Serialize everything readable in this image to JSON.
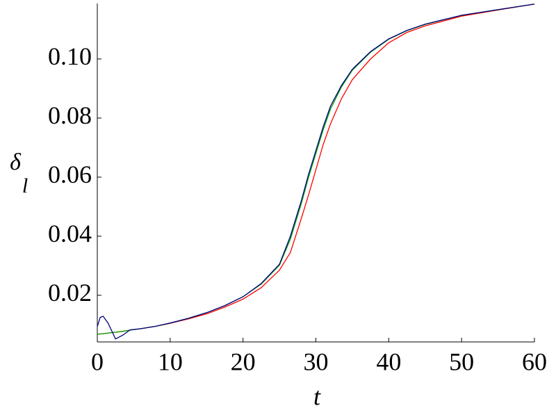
{
  "chart_data": {
    "type": "line",
    "xlabel": "t",
    "ylabel": "δ",
    "ylabel_subscript": "l",
    "x": [
      0,
      0.4,
      0.8,
      1.5,
      2.5,
      3.5,
      4.5,
      6,
      8,
      10,
      12.5,
      15,
      17.5,
      20,
      22.5,
      25,
      26.5,
      28,
      29,
      30,
      31,
      32,
      33.5,
      35,
      37.5,
      40,
      42.5,
      45,
      50,
      55,
      60
    ],
    "series": [
      {
        "color": "#ff0000",
        "values": [
          0.0068,
          0.0069,
          0.007,
          0.0072,
          0.0075,
          0.0078,
          0.0082,
          0.0087,
          0.0095,
          0.0105,
          0.012,
          0.0137,
          0.016,
          0.0187,
          0.0226,
          0.0285,
          0.0345,
          0.046,
          0.054,
          0.0625,
          0.071,
          0.078,
          0.0865,
          0.093,
          0.1,
          0.1055,
          0.109,
          0.1112,
          0.1145,
          0.1166,
          0.1186
        ]
      },
      {
        "color": "#00a000",
        "values": [
          0.0068,
          0.0069,
          0.007,
          0.0072,
          0.0075,
          0.0078,
          0.0082,
          0.0087,
          0.0095,
          0.0106,
          0.0122,
          0.0141,
          0.0165,
          0.0195,
          0.0238,
          0.0302,
          0.039,
          0.051,
          0.06,
          0.068,
          0.076,
          0.083,
          0.0905,
          0.0962,
          0.1023,
          0.1067,
          0.1096,
          0.1117,
          0.1148,
          0.1167,
          0.1186
        ]
      },
      {
        "color": "#000080",
        "values": [
          0.0094,
          0.0125,
          0.0129,
          0.0105,
          0.0052,
          0.0065,
          0.0083,
          0.0087,
          0.0095,
          0.0106,
          0.0122,
          0.0141,
          0.0165,
          0.0195,
          0.024,
          0.0305,
          0.04,
          0.052,
          0.061,
          0.069,
          0.077,
          0.084,
          0.091,
          0.0965,
          0.1025,
          0.1068,
          0.1097,
          0.1118,
          0.1148,
          0.1167,
          0.1186
        ]
      }
    ],
    "xlim": [
      0,
      60
    ],
    "xticks": [
      0,
      10,
      20,
      30,
      40,
      50,
      60
    ],
    "ylim": [
      0.0042,
      0.1188
    ],
    "yticks": [
      0.02,
      0.04,
      0.06,
      0.08,
      {
        "value": 0.1,
        "label": "0.10"
      }
    ]
  }
}
